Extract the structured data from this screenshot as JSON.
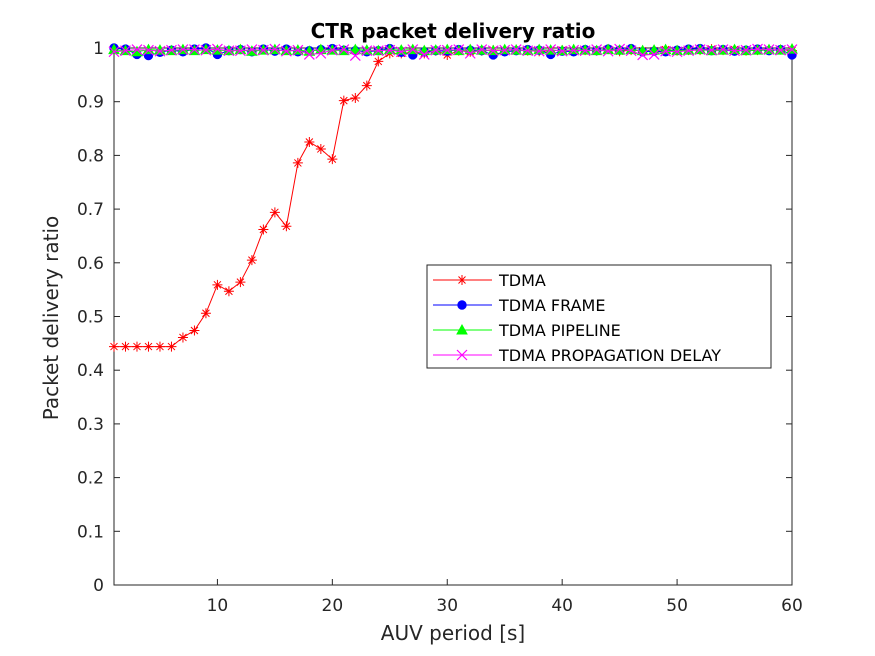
{
  "chart_data": {
    "type": "line",
    "title": "CTR packet delivery ratio",
    "xlabel": "AUV period [s]",
    "ylabel": "Packet delivery ratio",
    "xlim": [
      1,
      60
    ],
    "ylim": [
      0,
      1
    ],
    "xticks": [
      10,
      20,
      30,
      40,
      50,
      60
    ],
    "yticks": [
      0,
      0.1,
      0.2,
      0.3,
      0.4,
      0.5,
      0.6,
      0.7,
      0.8,
      0.9,
      1
    ],
    "ytick_labels": [
      "0",
      "0.1",
      "0.2",
      "0.3",
      "0.4",
      "0.5",
      "0.6",
      "0.7",
      "0.8",
      "0.9",
      "1"
    ],
    "grid": false,
    "legend_position": "center-right",
    "x": [
      1,
      2,
      3,
      4,
      5,
      6,
      7,
      8,
      9,
      10,
      11,
      12,
      13,
      14,
      15,
      16,
      17,
      18,
      19,
      20,
      21,
      22,
      23,
      24,
      25,
      26,
      27,
      28,
      29,
      30,
      31,
      32,
      33,
      34,
      35,
      36,
      37,
      38,
      39,
      40,
      41,
      42,
      43,
      44,
      45,
      46,
      47,
      48,
      49,
      50,
      51,
      52,
      53,
      54,
      55,
      56,
      57,
      58,
      59,
      60
    ],
    "series": [
      {
        "name": "TDMA",
        "color": "#ff0000",
        "marker": "asterisk",
        "values": [
          0.444,
          0.444,
          0.444,
          0.444,
          0.444,
          0.444,
          0.461,
          0.474,
          0.506,
          0.559,
          0.547,
          0.564,
          0.605,
          0.662,
          0.694,
          0.668,
          0.786,
          0.825,
          0.812,
          0.793,
          0.902,
          0.907,
          0.93,
          0.975,
          0.99,
          0.99,
          0.992,
          0.99,
          0.995,
          0.987,
          0.995,
          0.993,
          0.995,
          0.996,
          0.996,
          0.997,
          0.995,
          0.994,
          0.995,
          0.996,
          0.995,
          0.996,
          0.995,
          0.998,
          0.994,
          0.996,
          0.995,
          0.995,
          0.997,
          0.995,
          0.996,
          0.996,
          0.998,
          0.996,
          0.997,
          0.995,
          0.996,
          0.996,
          0.997,
          0.995
        ]
      },
      {
        "name": "TDMA FRAME",
        "color": "#0000ff",
        "marker": "circle",
        "values": [
          1.0,
          0.998,
          0.988,
          0.986,
          0.992,
          0.996,
          0.993,
          0.998,
          1.0,
          0.988,
          0.995,
          0.997,
          0.993,
          0.998,
          0.994,
          0.998,
          0.993,
          0.995,
          0.997,
          0.999,
          0.996,
          0.995,
          0.993,
          0.995,
          0.999,
          0.992,
          0.987,
          0.993,
          0.995,
          0.994,
          0.997,
          0.996,
          0.995,
          0.987,
          0.993,
          0.995,
          0.997,
          0.996,
          0.988,
          0.994,
          0.993,
          0.997,
          0.995,
          0.998,
          0.996,
          0.999,
          0.993,
          0.994,
          0.993,
          0.996,
          0.998,
          0.999,
          0.995,
          0.997,
          0.994,
          0.996,
          0.998,
          0.995,
          0.997,
          0.987
        ]
      },
      {
        "name": "TDMA PIPELINE",
        "color": "#00ff00",
        "marker": "triangle",
        "values": [
          0.997,
          0.995,
          0.993,
          0.997,
          0.996,
          0.995,
          0.997,
          0.995,
          0.997,
          0.996,
          0.995,
          0.997,
          0.994,
          0.996,
          0.997,
          0.995,
          0.996,
          0.994,
          0.997,
          0.996,
          0.995,
          0.997,
          0.996,
          0.995,
          0.997,
          0.996,
          0.997,
          0.995,
          0.996,
          0.997,
          0.995,
          0.997,
          0.996,
          0.995,
          0.997,
          0.996,
          0.995,
          0.997,
          0.996,
          0.995,
          0.997,
          0.996,
          0.995,
          0.997,
          0.996,
          0.997,
          0.995,
          0.996,
          0.997,
          0.995,
          0.996,
          0.997,
          0.995,
          0.996,
          0.997,
          0.995,
          0.996,
          0.997,
          0.996,
          0.998
        ]
      },
      {
        "name": "TDMA PROPAGATION DELAY",
        "color": "#ff00ff",
        "marker": "x",
        "values": [
          0.993,
          0.995,
          0.997,
          0.996,
          0.994,
          0.996,
          0.997,
          0.997,
          0.996,
          0.998,
          0.995,
          0.995,
          0.997,
          0.996,
          0.998,
          0.994,
          0.996,
          0.988,
          0.99,
          0.996,
          0.997,
          0.986,
          0.995,
          0.995,
          0.996,
          0.993,
          0.997,
          0.988,
          0.996,
          0.996,
          0.997,
          0.99,
          0.997,
          0.995,
          0.996,
          0.997,
          0.995,
          0.994,
          0.997,
          0.994,
          0.996,
          0.995,
          0.997,
          0.994,
          0.998,
          0.995,
          0.987,
          0.988,
          0.994,
          0.993,
          0.995,
          0.997,
          0.996,
          0.997,
          0.995,
          0.996,
          0.998,
          0.997,
          0.996,
          0.997
        ]
      }
    ]
  }
}
